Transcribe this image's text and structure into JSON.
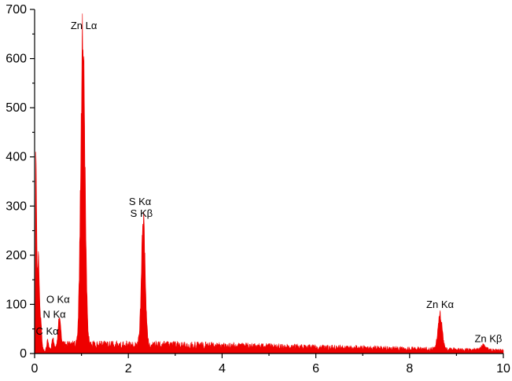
{
  "chart_data": {
    "type": "area",
    "title": "",
    "xlabel": "",
    "ylabel": "",
    "xlim": [
      0,
      10
    ],
    "ylim": [
      0,
      700
    ],
    "x_ticks": [
      0,
      2,
      4,
      6,
      8,
      10
    ],
    "y_ticks": [
      0,
      100,
      200,
      300,
      400,
      500,
      600,
      700
    ],
    "grid": false,
    "series_color": "#ee0000",
    "background": 14,
    "peaks": [
      {
        "x": 0.03,
        "y": 392,
        "width": 0.014
      },
      {
        "x": 0.08,
        "y": 200,
        "width": 0.02
      },
      {
        "x": 0.13,
        "y": 60,
        "width": 0.02
      },
      {
        "x": 0.28,
        "y": 22,
        "width": 0.015
      },
      {
        "x": 0.39,
        "y": 20,
        "width": 0.02
      },
      {
        "x": 0.53,
        "y": 62,
        "width": 0.03
      },
      {
        "x": 1.03,
        "y": 640,
        "width": 0.045
      },
      {
        "x": 2.32,
        "y": 263,
        "width": 0.04
      },
      {
        "x": 8.65,
        "y": 72,
        "width": 0.045
      },
      {
        "x": 9.58,
        "y": 10,
        "width": 0.05
      }
    ],
    "annotations": [
      {
        "text": "Zn Lα",
        "x": 1.05,
        "y": 660
      },
      {
        "text": "S Kα",
        "x": 2.25,
        "y": 302
      },
      {
        "text": "S Kβ",
        "x": 2.28,
        "y": 278
      },
      {
        "text": "O Kα",
        "x": 0.5,
        "y": 103
      },
      {
        "text": "N Kα",
        "x": 0.42,
        "y": 73
      },
      {
        "text": "C Kα",
        "x": 0.27,
        "y": 38
      },
      {
        "text": "Zn Kα",
        "x": 8.65,
        "y": 93
      },
      {
        "text": "Zn Kβ",
        "x": 9.68,
        "y": 23
      }
    ]
  }
}
